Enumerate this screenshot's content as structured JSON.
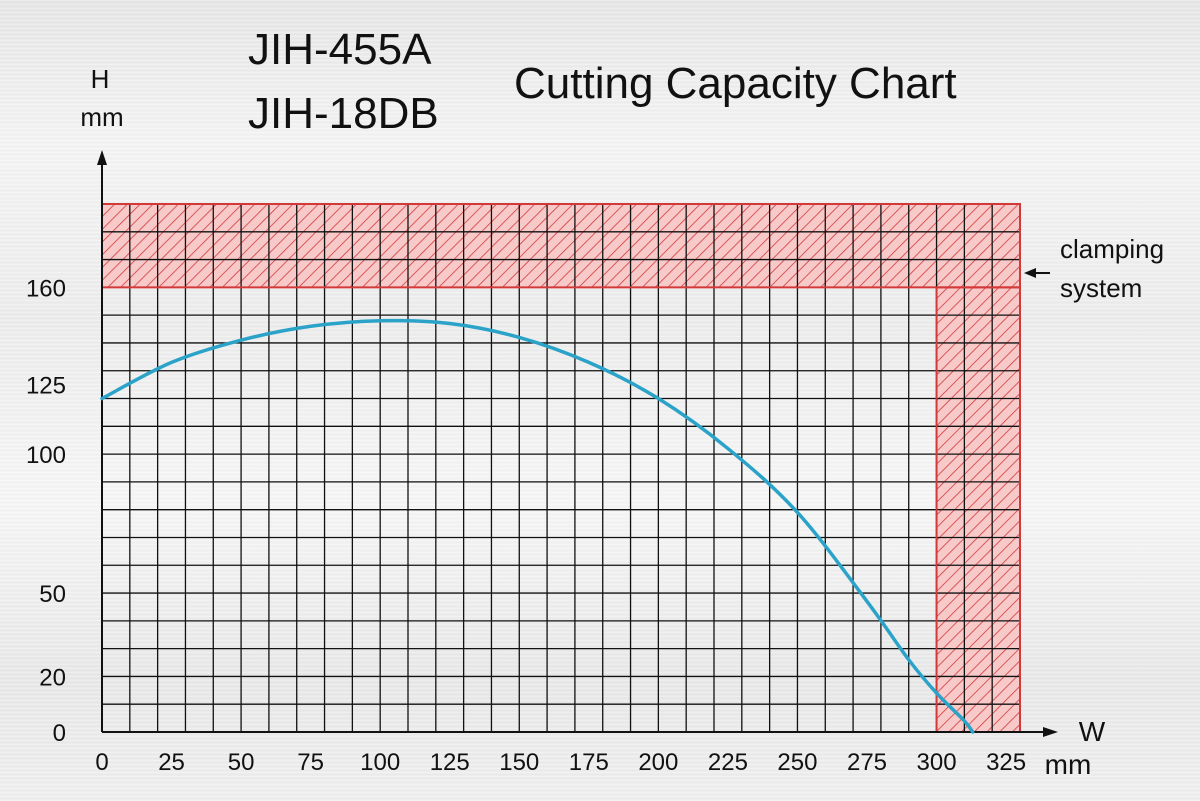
{
  "header": {
    "models": [
      "JIH-455A",
      "JIH-18DB"
    ]
  },
  "chart_data": {
    "type": "line",
    "title": "Cutting Capacity Chart",
    "ylabel_symbol": "H",
    "ylabel_unit": "mm",
    "xlabel_symbol": "W",
    "xlabel_unit": "mm",
    "x_ticks": [
      0,
      25,
      50,
      75,
      100,
      125,
      150,
      175,
      200,
      225,
      250,
      275,
      300,
      325
    ],
    "y_ticks": [
      0,
      20,
      50,
      100,
      125,
      160
    ],
    "xlim": [
      0,
      330
    ],
    "ylim": [
      0,
      190
    ],
    "grid": true,
    "grid_step_x": 10,
    "grid_step_y": 10,
    "annotation": {
      "text_lines": [
        "clamping",
        "system"
      ]
    },
    "restricted_zones": [
      {
        "x": [
          0,
          330
        ],
        "y": [
          160,
          190
        ]
      },
      {
        "x": [
          300,
          330
        ],
        "y": [
          0,
          160
        ]
      }
    ],
    "series": [
      {
        "color": "#2ba3c9",
        "x": [
          0,
          25,
          50,
          75,
          100,
          125,
          150,
          175,
          200,
          225,
          250,
          275,
          290,
          300,
          310,
          313
        ],
        "y": [
          120,
          133,
          141,
          146,
          148,
          147,
          142,
          133,
          120,
          102,
          79,
          47,
          26,
          14,
          4,
          0
        ]
      }
    ],
    "colors": {
      "grid": "#111111",
      "zone": "#d23a3a",
      "zone_fill": "#f7c9c9"
    }
  }
}
